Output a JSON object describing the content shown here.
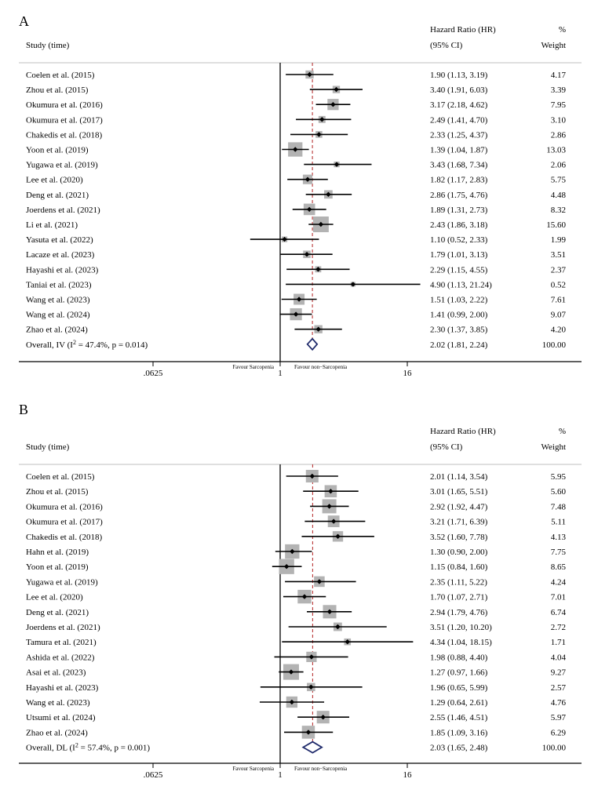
{
  "chart_data": [
    {
      "type": "forest",
      "panel": "A",
      "headers": {
        "study": "Study (time)",
        "hr_line1": "Hazard Ratio (HR)",
        "hr_line2": "(95% CI)",
        "weight_line1": "%",
        "weight_line2": "Weight"
      },
      "studies": [
        {
          "label": "Coelen et al. (2015)",
          "hr": 1.9,
          "lo": 1.13,
          "hi": 3.19,
          "ci_text": "1.90 (1.13, 3.19)",
          "weight": "4.17"
        },
        {
          "label": "Zhou et al. (2015)",
          "hr": 3.4,
          "lo": 1.91,
          "hi": 6.03,
          "ci_text": "3.40 (1.91, 6.03)",
          "weight": "3.39"
        },
        {
          "label": "Okumura et al. (2016)",
          "hr": 3.17,
          "lo": 2.18,
          "hi": 4.62,
          "ci_text": "3.17 (2.18, 4.62)",
          "weight": "7.95"
        },
        {
          "label": "Okumura et al. (2017)",
          "hr": 2.49,
          "lo": 1.41,
          "hi": 4.7,
          "ci_text": "2.49 (1.41, 4.70)",
          "weight": "3.10"
        },
        {
          "label": "Chakedis et al. (2018)",
          "hr": 2.33,
          "lo": 1.25,
          "hi": 4.37,
          "ci_text": "2.33 (1.25, 4.37)",
          "weight": "2.86"
        },
        {
          "label": "Yoon et al. (2019)",
          "hr": 1.39,
          "lo": 1.04,
          "hi": 1.87,
          "ci_text": "1.39 (1.04, 1.87)",
          "weight": "13.03"
        },
        {
          "label": "Yugawa et al. (2019)",
          "hr": 3.43,
          "lo": 1.68,
          "hi": 7.34,
          "ci_text": "3.43 (1.68, 7.34)",
          "weight": "2.06"
        },
        {
          "label": "Lee et al. (2020)",
          "hr": 1.82,
          "lo": 1.17,
          "hi": 2.83,
          "ci_text": "1.82 (1.17, 2.83)",
          "weight": "5.75"
        },
        {
          "label": "Deng et al. (2021)",
          "hr": 2.86,
          "lo": 1.75,
          "hi": 4.76,
          "ci_text": "2.86 (1.75, 4.76)",
          "weight": "4.48"
        },
        {
          "label": "Joerdens et al. (2021)",
          "hr": 1.89,
          "lo": 1.31,
          "hi": 2.73,
          "ci_text": "1.89 (1.31, 2.73)",
          "weight": "8.32"
        },
        {
          "label": "Li et al. (2021)",
          "hr": 2.43,
          "lo": 1.86,
          "hi": 3.18,
          "ci_text": "2.43 (1.86, 3.18)",
          "weight": "15.60"
        },
        {
          "label": "Yasuta et al. (2022)",
          "hr": 1.1,
          "lo": 0.52,
          "hi": 2.33,
          "ci_text": "1.10 (0.52, 2.33)",
          "weight": "1.99"
        },
        {
          "label": "Lacaze et al. (2023)",
          "hr": 1.79,
          "lo": 1.01,
          "hi": 3.13,
          "ci_text": "1.79 (1.01, 3.13)",
          "weight": "3.51"
        },
        {
          "label": "Hayashi et al. (2023)",
          "hr": 2.29,
          "lo": 1.15,
          "hi": 4.55,
          "ci_text": "2.29 (1.15, 4.55)",
          "weight": "2.37"
        },
        {
          "label": "Taniai et al. (2023)",
          "hr": 4.9,
          "lo": 1.13,
          "hi": 21.24,
          "ci_text": "4.90 (1.13, 21.24)",
          "weight": "0.52"
        },
        {
          "label": "Wang et al. (2023)",
          "hr": 1.51,
          "lo": 1.03,
          "hi": 2.22,
          "ci_text": "1.51 (1.03, 2.22)",
          "weight": "7.61"
        },
        {
          "label": "Wang et al. (2024)",
          "hr": 1.41,
          "lo": 0.99,
          "hi": 2.0,
          "ci_text": "1.41 (0.99, 2.00)",
          "weight": "9.07"
        },
        {
          "label": "Zhao et al. (2024)",
          "hr": 2.3,
          "lo": 1.37,
          "hi": 3.85,
          "ci_text": "2.30 (1.37, 3.85)",
          "weight": "4.20"
        }
      ],
      "overall": {
        "label_prefix": "Overall, IV (I",
        "label_sup": "2",
        "label_suffix": " = 47.4%, p = 0.014)",
        "hr": 2.02,
        "lo": 1.81,
        "hi": 2.24,
        "ci_text": "2.02 (1.81, 2.24)",
        "weight": "100.00"
      },
      "x_axis": {
        "scale": "log2",
        "range": [
          0.0625,
          16
        ],
        "ticks": [
          {
            "value": 0.0625,
            "label": ".0625"
          },
          {
            "value": 1,
            "label": "1"
          },
          {
            "value": 16,
            "label": "16"
          }
        ],
        "favour_left": "Favour Sarcopenia",
        "favour_right": "Favour non−Sarcopenia"
      }
    },
    {
      "type": "forest",
      "panel": "B",
      "headers": {
        "study": "Study (time)",
        "hr_line1": "Hazard Ratio (HR)",
        "hr_line2": "(95% CI)",
        "weight_line1": "%",
        "weight_line2": "Weight"
      },
      "studies": [
        {
          "label": "Coelen et al. (2015)",
          "hr": 2.01,
          "lo": 1.14,
          "hi": 3.54,
          "ci_text": "2.01 (1.14, 3.54)",
          "weight": "5.95"
        },
        {
          "label": "Zhou et al. (2015)",
          "hr": 3.01,
          "lo": 1.65,
          "hi": 5.51,
          "ci_text": "3.01 (1.65, 5.51)",
          "weight": "5.60"
        },
        {
          "label": "Okumura et al. (2016)",
          "hr": 2.92,
          "lo": 1.92,
          "hi": 4.47,
          "ci_text": "2.92 (1.92, 4.47)",
          "weight": "7.48"
        },
        {
          "label": "Okumura et al. (2017)",
          "hr": 3.21,
          "lo": 1.71,
          "hi": 6.39,
          "ci_text": "3.21 (1.71, 6.39)",
          "weight": "5.11"
        },
        {
          "label": "Chakedis et al. (2018)",
          "hr": 3.52,
          "lo": 1.6,
          "hi": 7.78,
          "ci_text": "3.52 (1.60, 7.78)",
          "weight": "4.13"
        },
        {
          "label": "Hahn et al. (2019)",
          "hr": 1.3,
          "lo": 0.9,
          "hi": 2.0,
          "ci_text": "1.30 (0.90, 2.00)",
          "weight": "7.75"
        },
        {
          "label": "Yoon et al. (2019)",
          "hr": 1.15,
          "lo": 0.84,
          "hi": 1.6,
          "ci_text": "1.15 (0.84, 1.60)",
          "weight": "8.65"
        },
        {
          "label": "Yugawa et al. (2019)",
          "hr": 2.35,
          "lo": 1.11,
          "hi": 5.22,
          "ci_text": "2.35 (1.11, 5.22)",
          "weight": "4.24"
        },
        {
          "label": "Lee et al. (2020)",
          "hr": 1.7,
          "lo": 1.07,
          "hi": 2.71,
          "ci_text": "1.70 (1.07, 2.71)",
          "weight": "7.01"
        },
        {
          "label": "Deng et al. (2021)",
          "hr": 2.94,
          "lo": 1.79,
          "hi": 4.76,
          "ci_text": "2.94 (1.79, 4.76)",
          "weight": "6.74"
        },
        {
          "label": "Joerdens et al. (2021)",
          "hr": 3.51,
          "lo": 1.2,
          "hi": 10.2,
          "ci_text": "3.51 (1.20, 10.20)",
          "weight": "2.72"
        },
        {
          "label": "Tamura et al. (2021)",
          "hr": 4.34,
          "lo": 1.04,
          "hi": 18.15,
          "ci_text": "4.34 (1.04, 18.15)",
          "weight": "1.71"
        },
        {
          "label": "Ashida et al. (2022)",
          "hr": 1.98,
          "lo": 0.88,
          "hi": 4.4,
          "ci_text": "1.98 (0.88, 4.40)",
          "weight": "4.04"
        },
        {
          "label": "Asai et al. (2023)",
          "hr": 1.27,
          "lo": 0.97,
          "hi": 1.66,
          "ci_text": "1.27 (0.97, 1.66)",
          "weight": "9.27"
        },
        {
          "label": "Hayashi et al. (2023)",
          "hr": 1.96,
          "lo": 0.65,
          "hi": 5.99,
          "ci_text": "1.96 (0.65, 5.99)",
          "weight": "2.57"
        },
        {
          "label": "Wang et al. (2023)",
          "hr": 1.29,
          "lo": 0.64,
          "hi": 2.61,
          "ci_text": "1.29 (0.64, 2.61)",
          "weight": "4.76"
        },
        {
          "label": "Utsumi et al. (2024)",
          "hr": 2.55,
          "lo": 1.46,
          "hi": 4.51,
          "ci_text": "2.55 (1.46, 4.51)",
          "weight": "5.97"
        },
        {
          "label": "Zhao et al. (2024)",
          "hr": 1.85,
          "lo": 1.09,
          "hi": 3.16,
          "ci_text": "1.85 (1.09, 3.16)",
          "weight": "6.29"
        }
      ],
      "overall": {
        "label_prefix": "Overall, DL (I",
        "label_sup": "2",
        "label_suffix": " = 57.4%, p = 0.001)",
        "hr": 2.03,
        "lo": 1.65,
        "hi": 2.48,
        "ci_text": "2.03 (1.65, 2.48)",
        "weight": "100.00"
      },
      "x_axis": {
        "scale": "log2",
        "range": [
          0.0625,
          16
        ],
        "ticks": [
          {
            "value": 0.0625,
            "label": ".0625"
          },
          {
            "value": 1,
            "label": "1"
          },
          {
            "value": 16,
            "label": "16"
          }
        ],
        "favour_left": "Favour Sarcopenia",
        "favour_right": "Favour non−Sarcopenia"
      }
    }
  ],
  "colors": {
    "ink": "#000000",
    "weight_box": "#b3b3b3",
    "overall_diamond": "#1f2a6b",
    "overall_line": "#b22222",
    "divider": "#bfbfbf"
  }
}
